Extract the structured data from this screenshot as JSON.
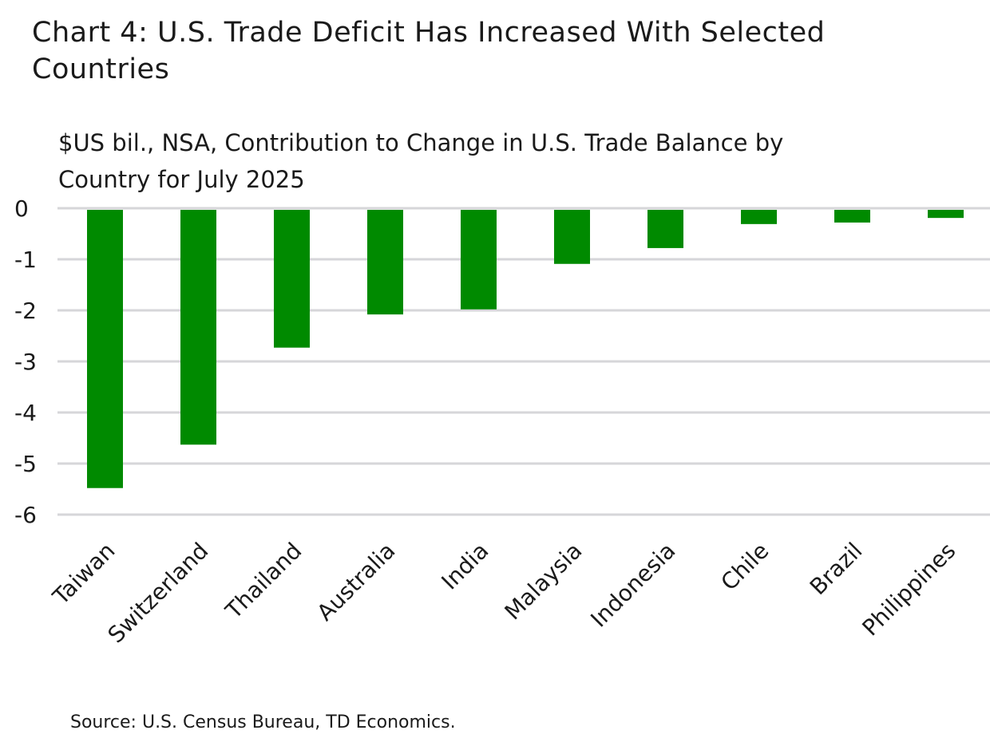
{
  "chart_data": {
    "type": "bar",
    "title": "Chart 4: U.S. Trade Deficit Has Increased With Selected Countries",
    "subtitle": "$US bil., NSA, Contribution to Change in U.S. Trade Balance by Country for July 2025",
    "categories": [
      "Taiwan",
      "Switzerland",
      "Thailand",
      "Australia",
      "India",
      "Malaysia",
      "Indonesia",
      "Chile",
      "Brazil",
      "Philippines"
    ],
    "values": [
      -5.48,
      -4.63,
      -2.73,
      -2.08,
      -1.98,
      -1.09,
      -0.78,
      -0.31,
      -0.28,
      -0.19
    ],
    "ylim": [
      -6,
      0
    ],
    "yticks": [
      0,
      -1,
      -2,
      -3,
      -4,
      -5,
      -6
    ],
    "grid": true,
    "bar_color": "#008a00",
    "grid_color": "#d6d6d9",
    "source": "Source: U.S. Census Bureau, TD Economics."
  }
}
